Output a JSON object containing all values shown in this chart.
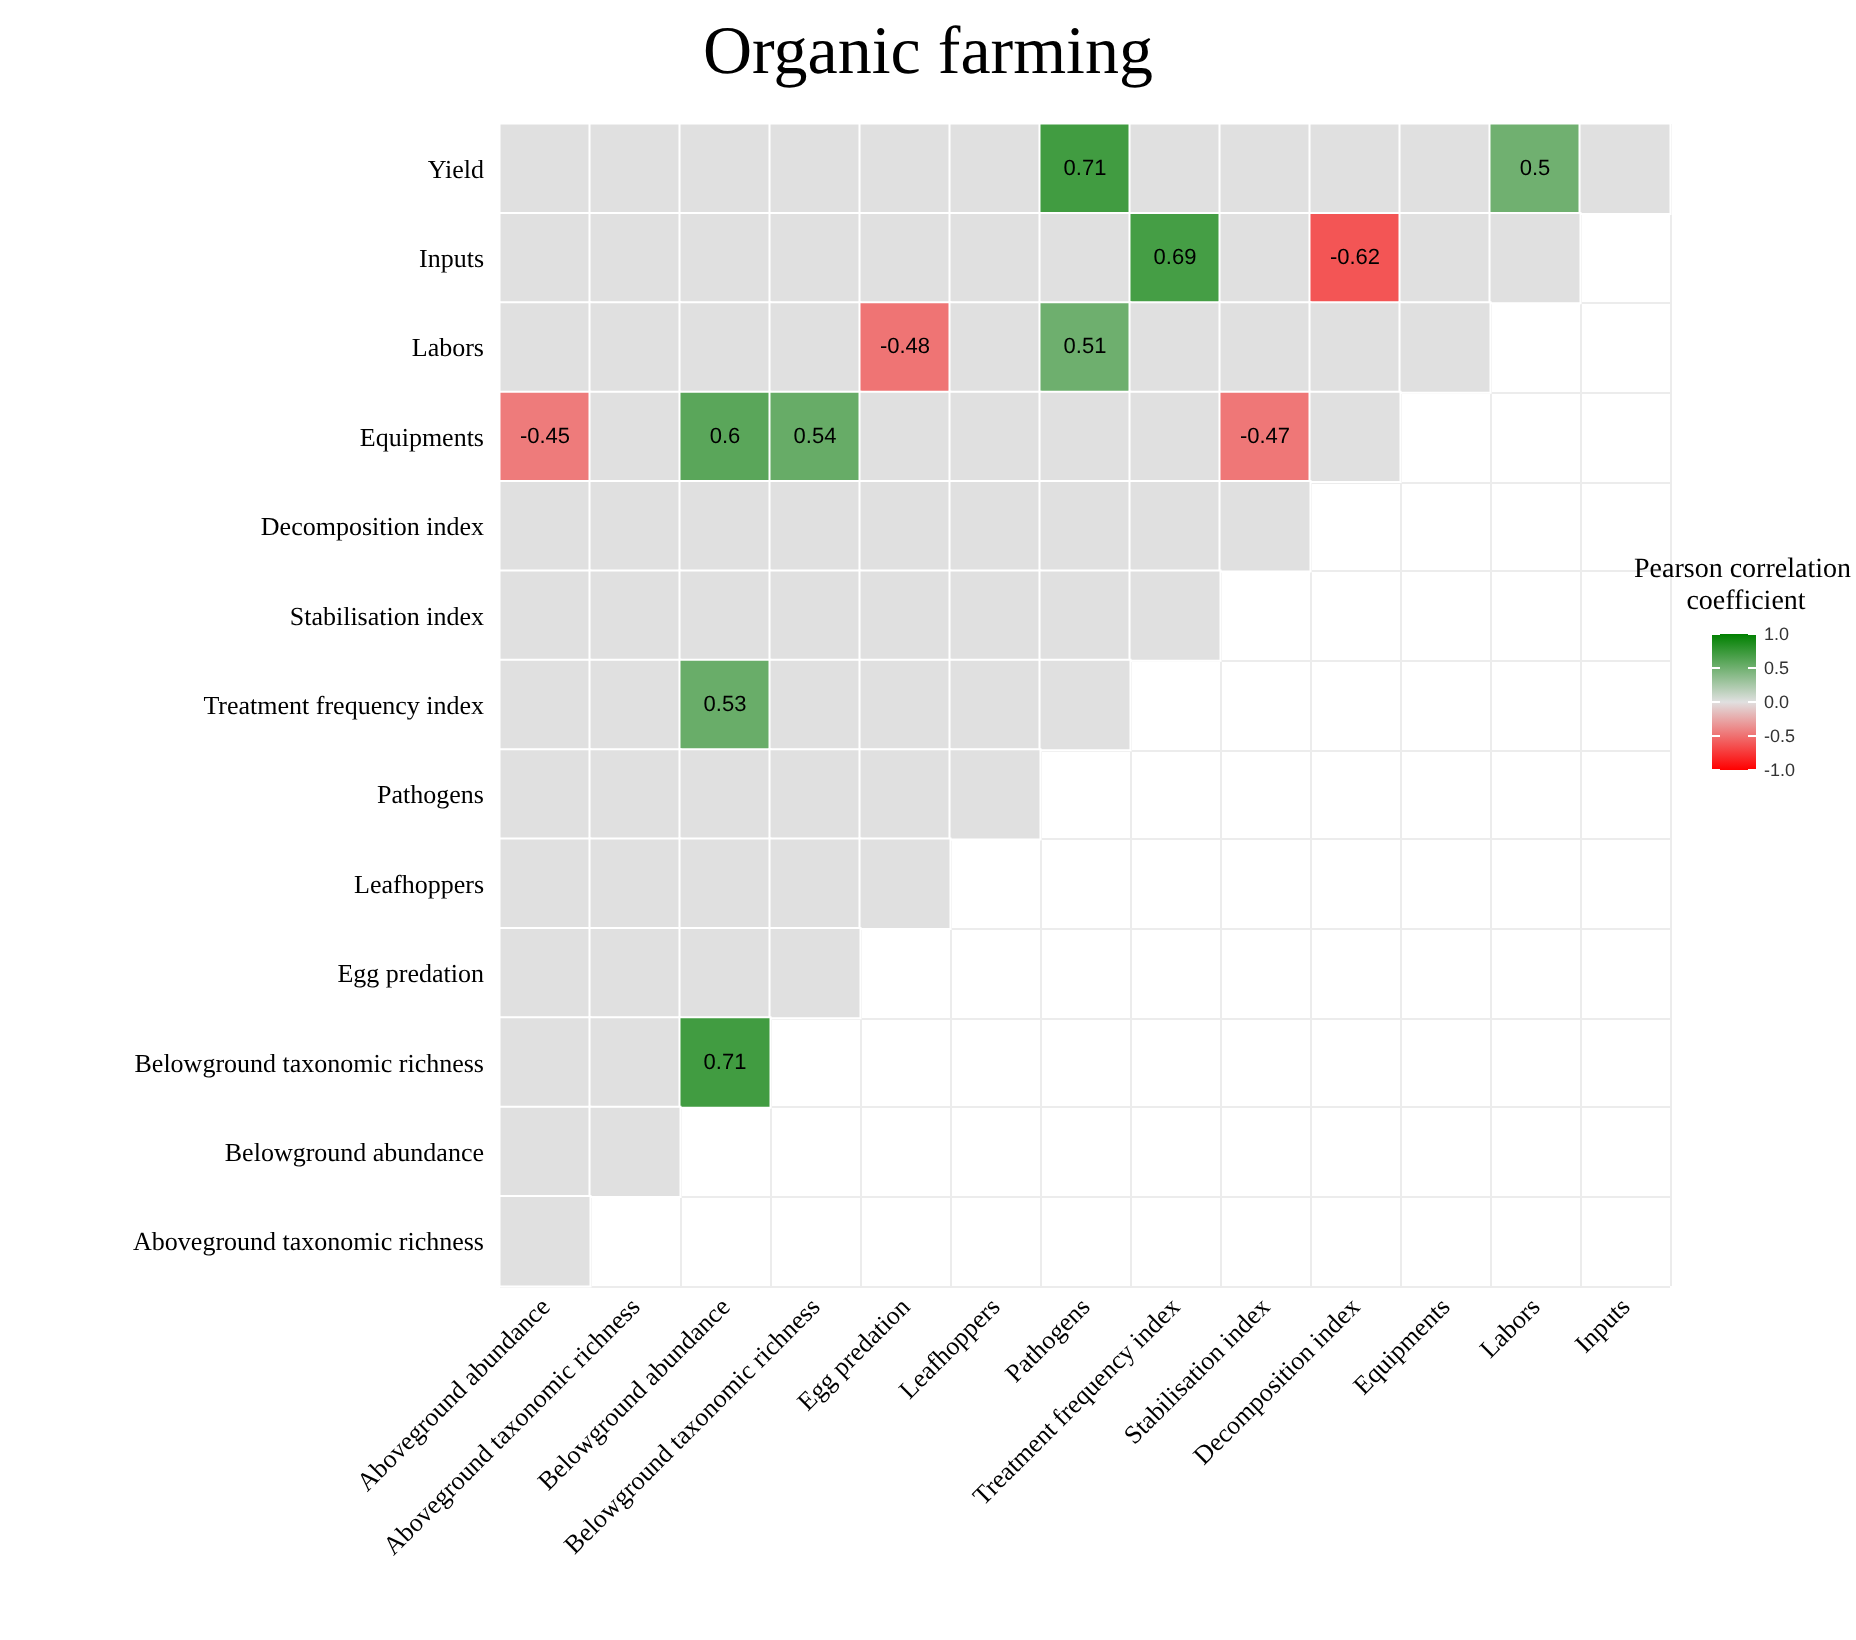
{
  "chart_data": {
    "type": "heatmap",
    "title": "Organic farming",
    "clabel": "Pearson correlation coefficient",
    "categories": [
      "Aboveground abundance",
      "Aboveground taxonomic richness",
      "Belowground abundance",
      "Belowground taxonomic richness",
      "Egg predation",
      "Leafhoppers",
      "Pathogens",
      "Treatment frequency index",
      "Stabilisation index",
      "Decomposition index",
      "Equipments",
      "Labors",
      "Inputs"
    ],
    "y_categories": [
      "Yield",
      "Inputs",
      "Labors",
      "Equipments",
      "Decomposition index",
      "Stabilisation index",
      "Treatment frequency index",
      "Pathogens",
      "Leafhoppers",
      "Egg predation",
      "Belowground taxonomic richness",
      "Belowground abundance",
      "Aboveground taxonomic richness"
    ],
    "cells": [
      [
        0,
        0,
        0,
        0,
        0,
        0,
        0.71,
        0,
        0,
        0,
        0,
        0.5,
        0
      ],
      [
        0,
        0,
        0,
        0,
        0,
        0,
        0,
        0.69,
        0,
        -0.62,
        0,
        0,
        null
      ],
      [
        0,
        0,
        0,
        0,
        -0.48,
        0,
        0.51,
        0,
        0,
        0,
        0,
        null,
        null
      ],
      [
        -0.45,
        0,
        0.6,
        0.54,
        0,
        0,
        0,
        0,
        -0.47,
        0,
        null,
        null,
        null
      ],
      [
        0,
        0,
        0,
        0,
        0,
        0,
        0,
        0,
        0,
        null,
        null,
        null,
        null
      ],
      [
        0,
        0,
        0,
        0,
        0,
        0,
        0,
        0,
        null,
        null,
        null,
        null,
        null
      ],
      [
        0,
        0,
        0.53,
        0,
        0,
        0,
        0,
        null,
        null,
        null,
        null,
        null,
        null
      ],
      [
        0,
        0,
        0,
        0,
        0,
        0,
        null,
        null,
        null,
        null,
        null,
        null,
        null
      ],
      [
        0,
        0,
        0,
        0,
        0,
        null,
        null,
        null,
        null,
        null,
        null,
        null,
        null
      ],
      [
        0,
        0,
        0,
        0,
        null,
        null,
        null,
        null,
        null,
        null,
        null,
        null,
        null
      ],
      [
        0,
        0,
        0.71,
        null,
        null,
        null,
        null,
        null,
        null,
        null,
        null,
        null,
        null
      ],
      [
        0,
        0,
        null,
        null,
        null,
        null,
        null,
        null,
        null,
        null,
        null,
        null,
        null
      ],
      [
        0,
        null,
        null,
        null,
        null,
        null,
        null,
        null,
        null,
        null,
        null,
        null,
        null
      ]
    ],
    "cell_labels": [
      [
        null,
        null,
        null,
        null,
        null,
        null,
        "0.71",
        null,
        null,
        null,
        null,
        "0.5",
        null
      ],
      [
        null,
        null,
        null,
        null,
        null,
        null,
        null,
        "0.69",
        null,
        "-0.62",
        null,
        null,
        null
      ],
      [
        null,
        null,
        null,
        null,
        "-0.48",
        null,
        "0.51",
        null,
        null,
        null,
        null,
        null,
        null
      ],
      [
        "-0.45",
        null,
        "0.6",
        "0.54",
        null,
        null,
        null,
        null,
        "-0.47",
        null,
        null,
        null,
        null
      ],
      [
        null,
        null,
        null,
        null,
        null,
        null,
        null,
        null,
        null,
        null,
        null,
        null,
        null
      ],
      [
        null,
        null,
        null,
        null,
        null,
        null,
        null,
        null,
        null,
        null,
        null,
        null,
        null
      ],
      [
        null,
        null,
        "0.53",
        null,
        null,
        null,
        null,
        null,
        null,
        null,
        null,
        null,
        null
      ],
      [
        null,
        null,
        null,
        null,
        null,
        null,
        null,
        null,
        null,
        null,
        null,
        null,
        null
      ],
      [
        null,
        null,
        null,
        null,
        null,
        null,
        null,
        null,
        null,
        null,
        null,
        null,
        null
      ],
      [
        null,
        null,
        null,
        null,
        null,
        null,
        null,
        null,
        null,
        null,
        null,
        null,
        null
      ],
      [
        null,
        null,
        "0.71",
        null,
        null,
        null,
        null,
        null,
        null,
        null,
        null,
        null,
        null
      ],
      [
        null,
        null,
        null,
        null,
        null,
        null,
        null,
        null,
        null,
        null,
        null,
        null,
        null
      ],
      [
        null,
        null,
        null,
        null,
        null,
        null,
        null,
        null,
        null,
        null,
        null,
        null,
        null
      ]
    ],
    "clim": [
      -1,
      1
    ],
    "cticks": [
      {
        "value": 1,
        "label": "1.0"
      },
      {
        "value": 0.5,
        "label": "0.5"
      },
      {
        "value": 0,
        "label": "0.0"
      },
      {
        "value": -0.5,
        "label": "-0.5"
      },
      {
        "value": -1,
        "label": "-1.0"
      }
    ],
    "grid": true
  }
}
